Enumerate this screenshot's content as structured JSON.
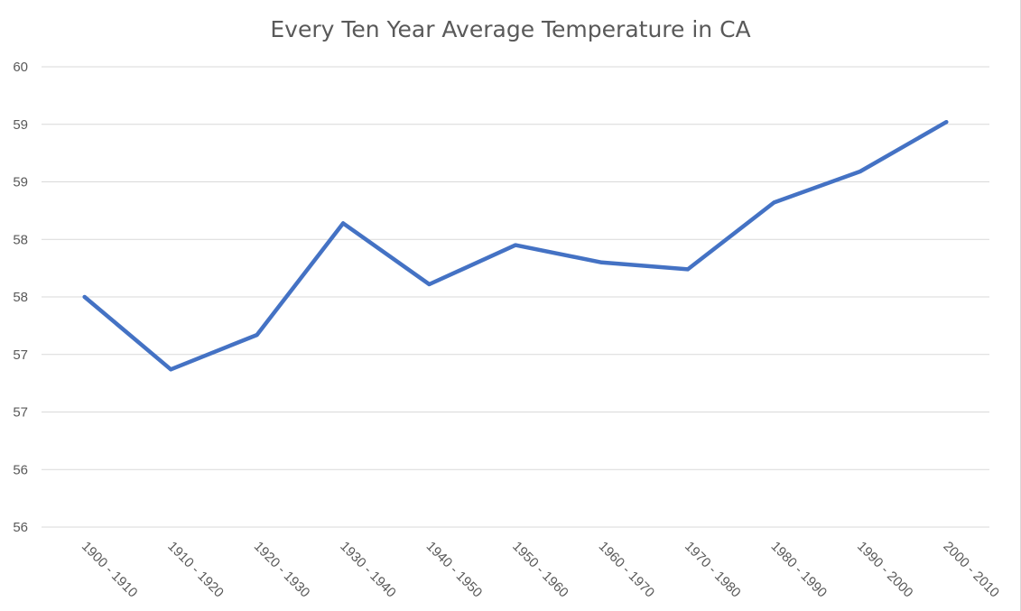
{
  "chart_data": {
    "type": "line",
    "title": "Every Ten Year Average Temperature in CA",
    "xlabel": "",
    "ylabel": "",
    "categories": [
      "1900 - 1910",
      "1910 - 1920",
      "1920 - 1930",
      "1930 - 1940",
      "1940 - 1950",
      "1950 - 1960",
      "1960 - 1970",
      "1970 - 1980",
      "1980 - 1990",
      "1990 - 2000",
      "2000 - 2010"
    ],
    "series": [
      {
        "name": "",
        "values": [
          57.5,
          56.87,
          57.17,
          58.14,
          57.61,
          57.95,
          57.8,
          57.74,
          58.32,
          58.59,
          59.02
        ],
        "color": "#4472c4"
      }
    ],
    "ylim": [
      55.5,
      59.5
    ],
    "y_ticks": [
      55.5,
      56.0,
      56.5,
      57.0,
      57.5,
      58.0,
      58.5,
      59.0,
      59.5
    ],
    "y_tick_labels": [
      "56",
      "56",
      "57",
      "57",
      "58",
      "58",
      "59",
      "59",
      "60"
    ],
    "grid": true,
    "legend": "none"
  }
}
